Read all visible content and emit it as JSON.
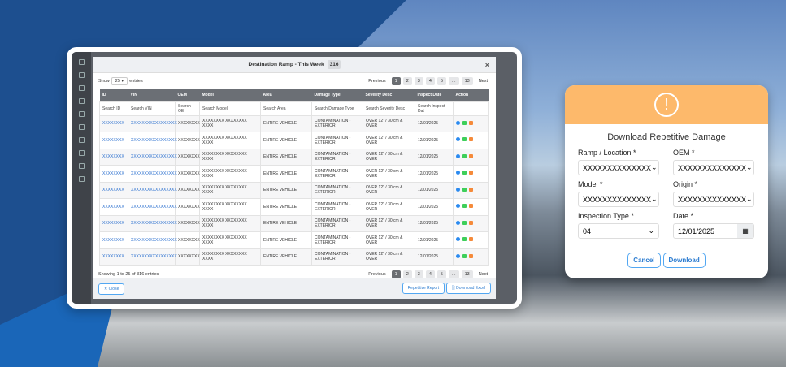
{
  "modal": {
    "title": "Destination Ramp - This Week",
    "count": "316",
    "show": "Show",
    "entries_value": "25",
    "entries": "entries",
    "pagination": [
      "Previous",
      "1",
      "2",
      "3",
      "4",
      "5",
      "...",
      "13",
      "Next"
    ],
    "columns": [
      "ID",
      "VIN",
      "OEM",
      "Model",
      "Area",
      "Damage Type",
      "Severity Desc",
      "Inspect Date",
      "Action"
    ],
    "search": [
      "Search ID",
      "Search VIN",
      "Search OE",
      "Search Model",
      "Search Area",
      "Search Damage Type",
      "Search Severity Desc",
      "Search Inspect Dat",
      ""
    ],
    "row": {
      "id": "XXXXXXXX",
      "vin": "XXXXXXXXXXXXXXXXX",
      "oem": "XXXXXXXX",
      "model": "XXXXXXXX XXXXXXXX XXXX",
      "area": "ENTIRE VEHICLE",
      "damage": "CONTAMINATION - EXTERIOR",
      "severity": "OVER 12\" / 30 cm & OVER",
      "date": "12/01/2025"
    },
    "row_count": 9,
    "info": "Showing 1 to 25 of 316 entries",
    "close": "✕ Close",
    "repetitive": "Repetitive Report",
    "excel": "🗎 Download Excel"
  },
  "dialog": {
    "title": "Download Repetitive Damage",
    "icon": "exclamation-circle",
    "fields": [
      {
        "label": "Ramp / Location *",
        "value": "XXXXXXXXXXXXXX"
      },
      {
        "label": "OEM *",
        "value": "XXXXXXXXXXXXXX"
      },
      {
        "label": "Model *",
        "value": "XXXXXXXXXXXXXX"
      },
      {
        "label": "Origin *",
        "value": "XXXXXXXXXXXXXX"
      },
      {
        "label": "Inspection Type *",
        "value": "04"
      },
      {
        "label": "Date *",
        "value": "12/01/2025"
      }
    ],
    "cancel": "Cancel",
    "download": "Download",
    "accent": "#fdb96b"
  }
}
